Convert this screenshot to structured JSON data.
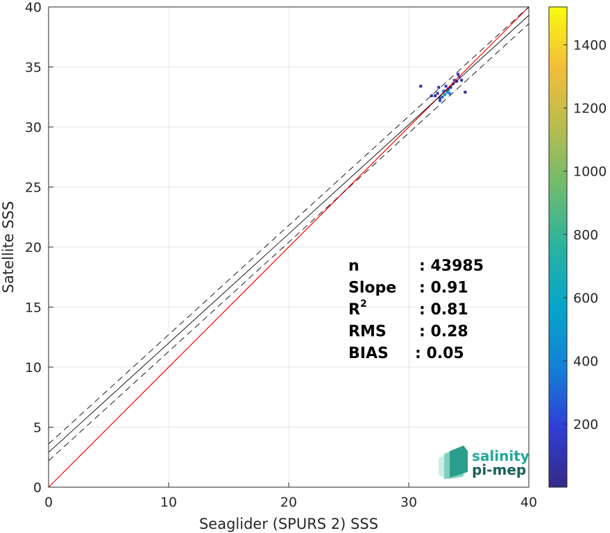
{
  "chart_data": {
    "type": "heatmap",
    "title": "",
    "xlabel": "Seaglider (SPURS 2) SSS",
    "ylabel": "Satellite SSS",
    "xlim": [
      0,
      40
    ],
    "ylim": [
      0,
      40
    ],
    "xticks": [
      0,
      10,
      20,
      30,
      40
    ],
    "yticks": [
      0,
      5,
      10,
      15,
      20,
      25,
      30,
      35,
      40
    ],
    "grid": true,
    "colorbar": {
      "colormap": "parula",
      "range": [
        0,
        1520
      ],
      "ticks": [
        200,
        400,
        600,
        800,
        1000,
        1200,
        1400
      ]
    },
    "one_to_one_line": {
      "x": [
        0,
        40
      ],
      "y": [
        0,
        40
      ],
      "color": "#ff0000"
    },
    "regression_line": {
      "slope": 0.91,
      "intercept": 2.9,
      "color": "#000000"
    },
    "confidence_bands": [
      {
        "slope": 0.91,
        "intercept": 3.6,
        "style": "dashed"
      },
      {
        "slope": 0.91,
        "intercept": 2.2,
        "style": "dashed"
      }
    ],
    "density_points": [
      {
        "x": 32.6,
        "y": 32.4,
        "count": 150
      },
      {
        "x": 32.8,
        "y": 32.5,
        "count": 300
      },
      {
        "x": 33.0,
        "y": 32.7,
        "count": 420
      },
      {
        "x": 33.2,
        "y": 32.9,
        "count": 480
      },
      {
        "x": 32.9,
        "y": 33.0,
        "count": 380
      },
      {
        "x": 33.3,
        "y": 33.1,
        "count": 300
      },
      {
        "x": 33.5,
        "y": 33.3,
        "count": 220
      },
      {
        "x": 33.1,
        "y": 33.4,
        "count": 180
      },
      {
        "x": 33.7,
        "y": 33.6,
        "count": 200
      },
      {
        "x": 34.0,
        "y": 33.8,
        "count": 160
      },
      {
        "x": 34.2,
        "y": 34.2,
        "count": 220
      },
      {
        "x": 34.1,
        "y": 34.4,
        "count": 140
      },
      {
        "x": 32.4,
        "y": 32.8,
        "count": 120
      },
      {
        "x": 32.2,
        "y": 32.6,
        "count": 80
      },
      {
        "x": 31.9,
        "y": 32.6,
        "count": 60
      },
      {
        "x": 32.5,
        "y": 33.3,
        "count": 90
      },
      {
        "x": 33.8,
        "y": 33.9,
        "count": 260
      },
      {
        "x": 34.4,
        "y": 33.9,
        "count": 70
      },
      {
        "x": 31.0,
        "y": 33.4,
        "count": 30
      },
      {
        "x": 34.7,
        "y": 32.9,
        "count": 20
      },
      {
        "x": 32.6,
        "y": 32.2,
        "count": 240
      },
      {
        "x": 33.4,
        "y": 32.8,
        "count": 350
      }
    ],
    "annotations": {
      "stats": [
        {
          "label": "n",
          "sep": ":",
          "value": "43985"
        },
        {
          "label": "Slope",
          "sep": ":",
          "value": "0.91"
        },
        {
          "label": "R",
          "sup": "2",
          "sep": ":",
          "value": "0.81"
        },
        {
          "label": "RMS",
          "sep": ":",
          "value": "0.28"
        },
        {
          "label": "BIAS",
          "sep": ":",
          "value": "0.05"
        }
      ]
    }
  },
  "logo": {
    "line1": "salinity",
    "line2": "pi-mep",
    "icon": "salinity-waves-icon",
    "color": "#1fa89a",
    "color_dark": "#17605c"
  }
}
